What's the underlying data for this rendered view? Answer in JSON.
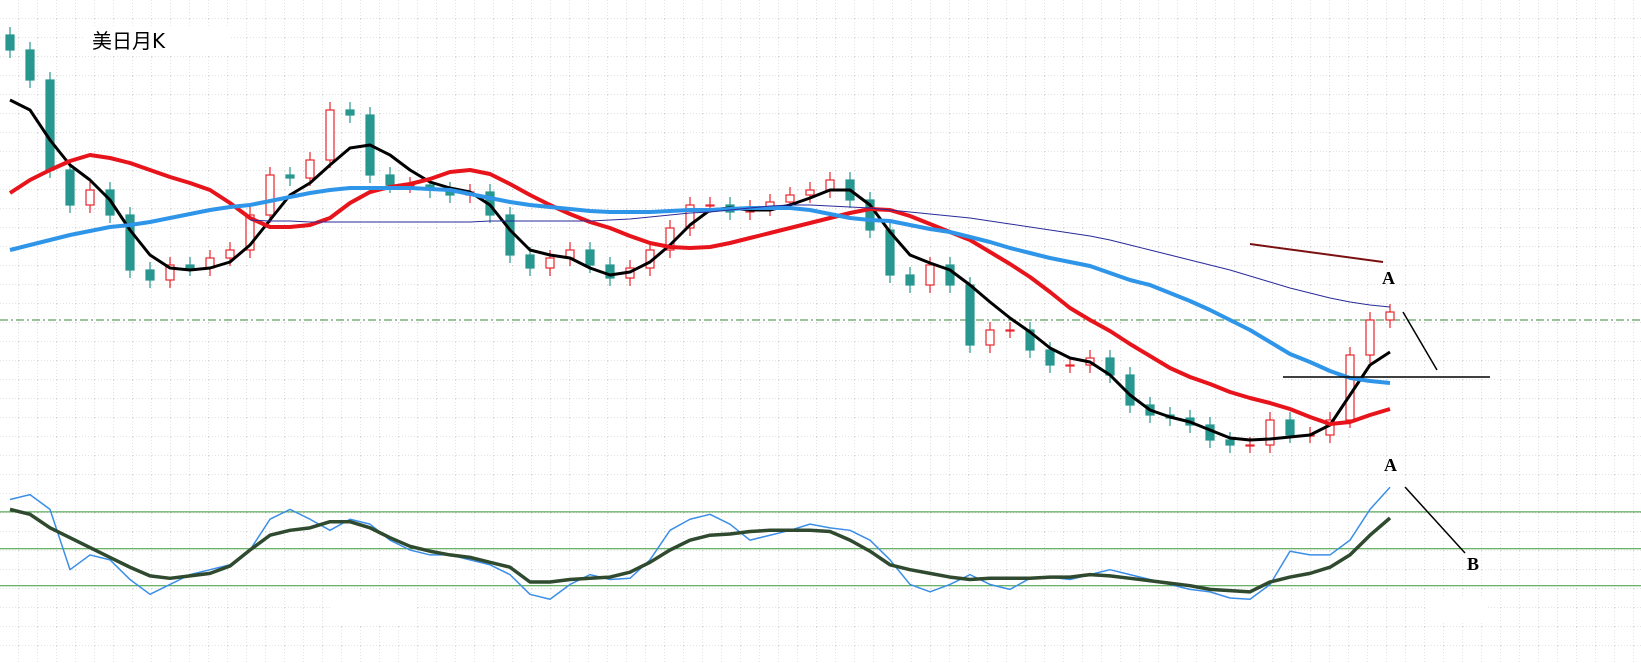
{
  "chart_data": [
    {
      "type": "candlestick",
      "title": "美日月K",
      "annotations": [
        "A"
      ],
      "ylim": [
        0,
        475
      ],
      "up_color": "#e8242c",
      "down_color": "#27978f",
      "open": [
        440,
        425,
        395,
        305,
        270,
        285,
        260,
        205,
        195,
        210,
        207,
        217,
        225,
        260,
        300,
        297,
        315,
        365,
        360,
        300,
        290,
        290,
        285,
        280,
        283,
        260,
        220,
        207,
        217,
        225,
        210,
        197,
        207,
        225,
        247,
        270,
        270,
        263,
        267,
        273,
        280,
        285,
        295,
        275,
        245,
        200,
        190,
        210,
        190,
        130,
        145,
        145,
        125,
        110,
        110,
        117,
        100,
        70,
        60,
        57,
        50,
        35,
        30,
        30,
        55,
        40,
        40,
        55,
        120,
        155
      ],
      "high": [
        448,
        433,
        403,
        313,
        293,
        293,
        268,
        213,
        218,
        218,
        225,
        233,
        268,
        308,
        308,
        323,
        373,
        373,
        368,
        308,
        298,
        298,
        293,
        291,
        291,
        268,
        228,
        225,
        233,
        233,
        218,
        215,
        233,
        255,
        278,
        278,
        278,
        275,
        281,
        288,
        293,
        303,
        303,
        283,
        253,
        208,
        218,
        218,
        198,
        153,
        153,
        153,
        133,
        118,
        125,
        125,
        108,
        78,
        68,
        65,
        58,
        43,
        38,
        63,
        63,
        48,
        63,
        128,
        163,
        171
      ],
      "low": [
        417,
        387,
        297,
        262,
        262,
        252,
        197,
        187,
        187,
        199,
        199,
        209,
        217,
        252,
        289,
        289,
        307,
        352,
        292,
        282,
        282,
        277,
        272,
        272,
        252,
        212,
        199,
        199,
        209,
        202,
        189,
        189,
        199,
        217,
        239,
        262,
        255,
        255,
        259,
        265,
        272,
        277,
        267,
        237,
        192,
        182,
        182,
        182,
        122,
        122,
        137,
        117,
        102,
        102,
        102,
        92,
        62,
        52,
        49,
        42,
        27,
        22,
        22,
        22,
        32,
        32,
        32,
        47,
        112,
        147
      ],
      "close": [
        425,
        395,
        305,
        270,
        285,
        260,
        205,
        195,
        210,
        207,
        217,
        225,
        260,
        300,
        297,
        315,
        365,
        360,
        300,
        290,
        290,
        285,
        280,
        283,
        260,
        220,
        207,
        217,
        225,
        210,
        197,
        207,
        225,
        247,
        270,
        270,
        263,
        267,
        273,
        280,
        285,
        295,
        275,
        245,
        200,
        190,
        210,
        190,
        130,
        145,
        145,
        125,
        110,
        110,
        117,
        100,
        70,
        60,
        57,
        50,
        35,
        30,
        30,
        55,
        40,
        40,
        55,
        120,
        155,
        163
      ],
      "series": [
        {
          "color": "#000000",
          "line_width": 3,
          "values": [
            375,
            365,
            335,
            310,
            295,
            275,
            245,
            220,
            207,
            205,
            207,
            213,
            230,
            255,
            280,
            292,
            310,
            327,
            330,
            320,
            305,
            293,
            287,
            283,
            270,
            245,
            225,
            220,
            217,
            207,
            200,
            203,
            213,
            230,
            250,
            265,
            267,
            265,
            265,
            270,
            277,
            285,
            285,
            270,
            243,
            220,
            212,
            205,
            190,
            173,
            157,
            143,
            127,
            117,
            113,
            100,
            80,
            65,
            58,
            53,
            45,
            37,
            35,
            36,
            38,
            40,
            50,
            80,
            110,
            123
          ]
        },
        {
          "color": "#e8141c",
          "line_width": 4,
          "values": [
            282,
            295,
            305,
            314,
            320,
            317,
            312,
            305,
            298,
            292,
            285,
            272,
            257,
            248,
            248,
            250,
            257,
            272,
            283,
            288,
            291,
            296,
            303,
            305,
            301,
            291,
            280,
            270,
            261,
            253,
            247,
            239,
            232,
            228,
            227,
            228,
            232,
            237,
            242,
            247,
            252,
            257,
            262,
            266,
            265,
            259,
            251,
            243,
            235,
            223,
            211,
            198,
            183,
            167,
            155,
            144,
            131,
            119,
            107,
            98,
            91,
            83,
            77,
            72,
            66,
            58,
            51,
            53,
            60,
            66
          ]
        },
        {
          "color": "#2e95e8",
          "line_width": 4,
          "values": [
            225,
            230,
            235,
            240,
            244,
            248,
            250,
            253,
            257,
            261,
            265,
            268,
            270,
            274,
            278,
            282,
            285,
            287,
            287,
            287,
            287,
            286,
            285,
            281,
            277,
            273,
            270,
            268,
            266,
            264,
            263,
            263,
            263,
            264,
            265,
            265,
            266,
            267,
            267,
            267,
            265,
            261,
            257,
            255,
            254,
            250,
            246,
            243,
            238,
            233,
            227,
            222,
            217,
            213,
            209,
            202,
            195,
            190,
            182,
            174,
            165,
            155,
            145,
            133,
            121,
            113,
            104,
            97,
            94,
            92
          ]
        },
        {
          "color": "#2a2a9a",
          "line_width": 1,
          "values": [
            null,
            null,
            null,
            null,
            null,
            null,
            null,
            null,
            null,
            null,
            null,
            null,
            255,
            254,
            254,
            253,
            253,
            253,
            253,
            253,
            253,
            253,
            253,
            253,
            254,
            254,
            254,
            254,
            254,
            254,
            255,
            256,
            258,
            260,
            262,
            263,
            265,
            267,
            269,
            270,
            270,
            269,
            268,
            267,
            265,
            263,
            261,
            259,
            257,
            254,
            251,
            248,
            245,
            242,
            239,
            235,
            230,
            225,
            220,
            215,
            210,
            205,
            199,
            193,
            187,
            182,
            177,
            173,
            170,
            168
          ]
        }
      ]
    },
    {
      "type": "line",
      "annotations": [
        "A",
        "B"
      ],
      "ylim": [
        -16,
        114
      ],
      "hlines": [
        20,
        50,
        80
      ],
      "hline_color": "#3a9a3a",
      "series": [
        {
          "color": "#3a8ee8",
          "line_width": 1.5,
          "values": [
            90,
            94,
            82,
            33,
            45,
            41,
            25,
            13,
            21,
            29,
            33,
            37,
            49,
            74,
            82,
            74,
            65,
            74,
            70,
            57,
            49,
            45,
            45,
            41,
            37,
            29,
            13,
            9,
            21,
            29,
            25,
            26,
            41,
            65,
            74,
            78,
            70,
            57,
            61,
            65,
            70,
            67,
            65,
            57,
            41,
            21,
            15,
            21,
            29,
            21,
            17,
            26,
            27,
            25,
            29,
            33,
            29,
            25,
            21,
            17,
            15,
            10,
            9,
            21,
            48,
            45,
            45,
            57,
            82,
            100
          ]
        },
        {
          "color": "#2f4a2f",
          "line_width": 3.5,
          "values": [
            82,
            78,
            67,
            59,
            51,
            43,
            35,
            28,
            26,
            28,
            30,
            36,
            49,
            61,
            65,
            67,
            72,
            72,
            67,
            59,
            52,
            48,
            45,
            43,
            39,
            35,
            23,
            23,
            25,
            26,
            27,
            31,
            39,
            49,
            57,
            61,
            62,
            64,
            65,
            65,
            65,
            64,
            57,
            48,
            37,
            33,
            30,
            27,
            25,
            26,
            26,
            26,
            27,
            27,
            29,
            28,
            26,
            24,
            22,
            20,
            17,
            16,
            15,
            23,
            27,
            30,
            35,
            45,
            61,
            75
          ]
        }
      ]
    }
  ]
}
